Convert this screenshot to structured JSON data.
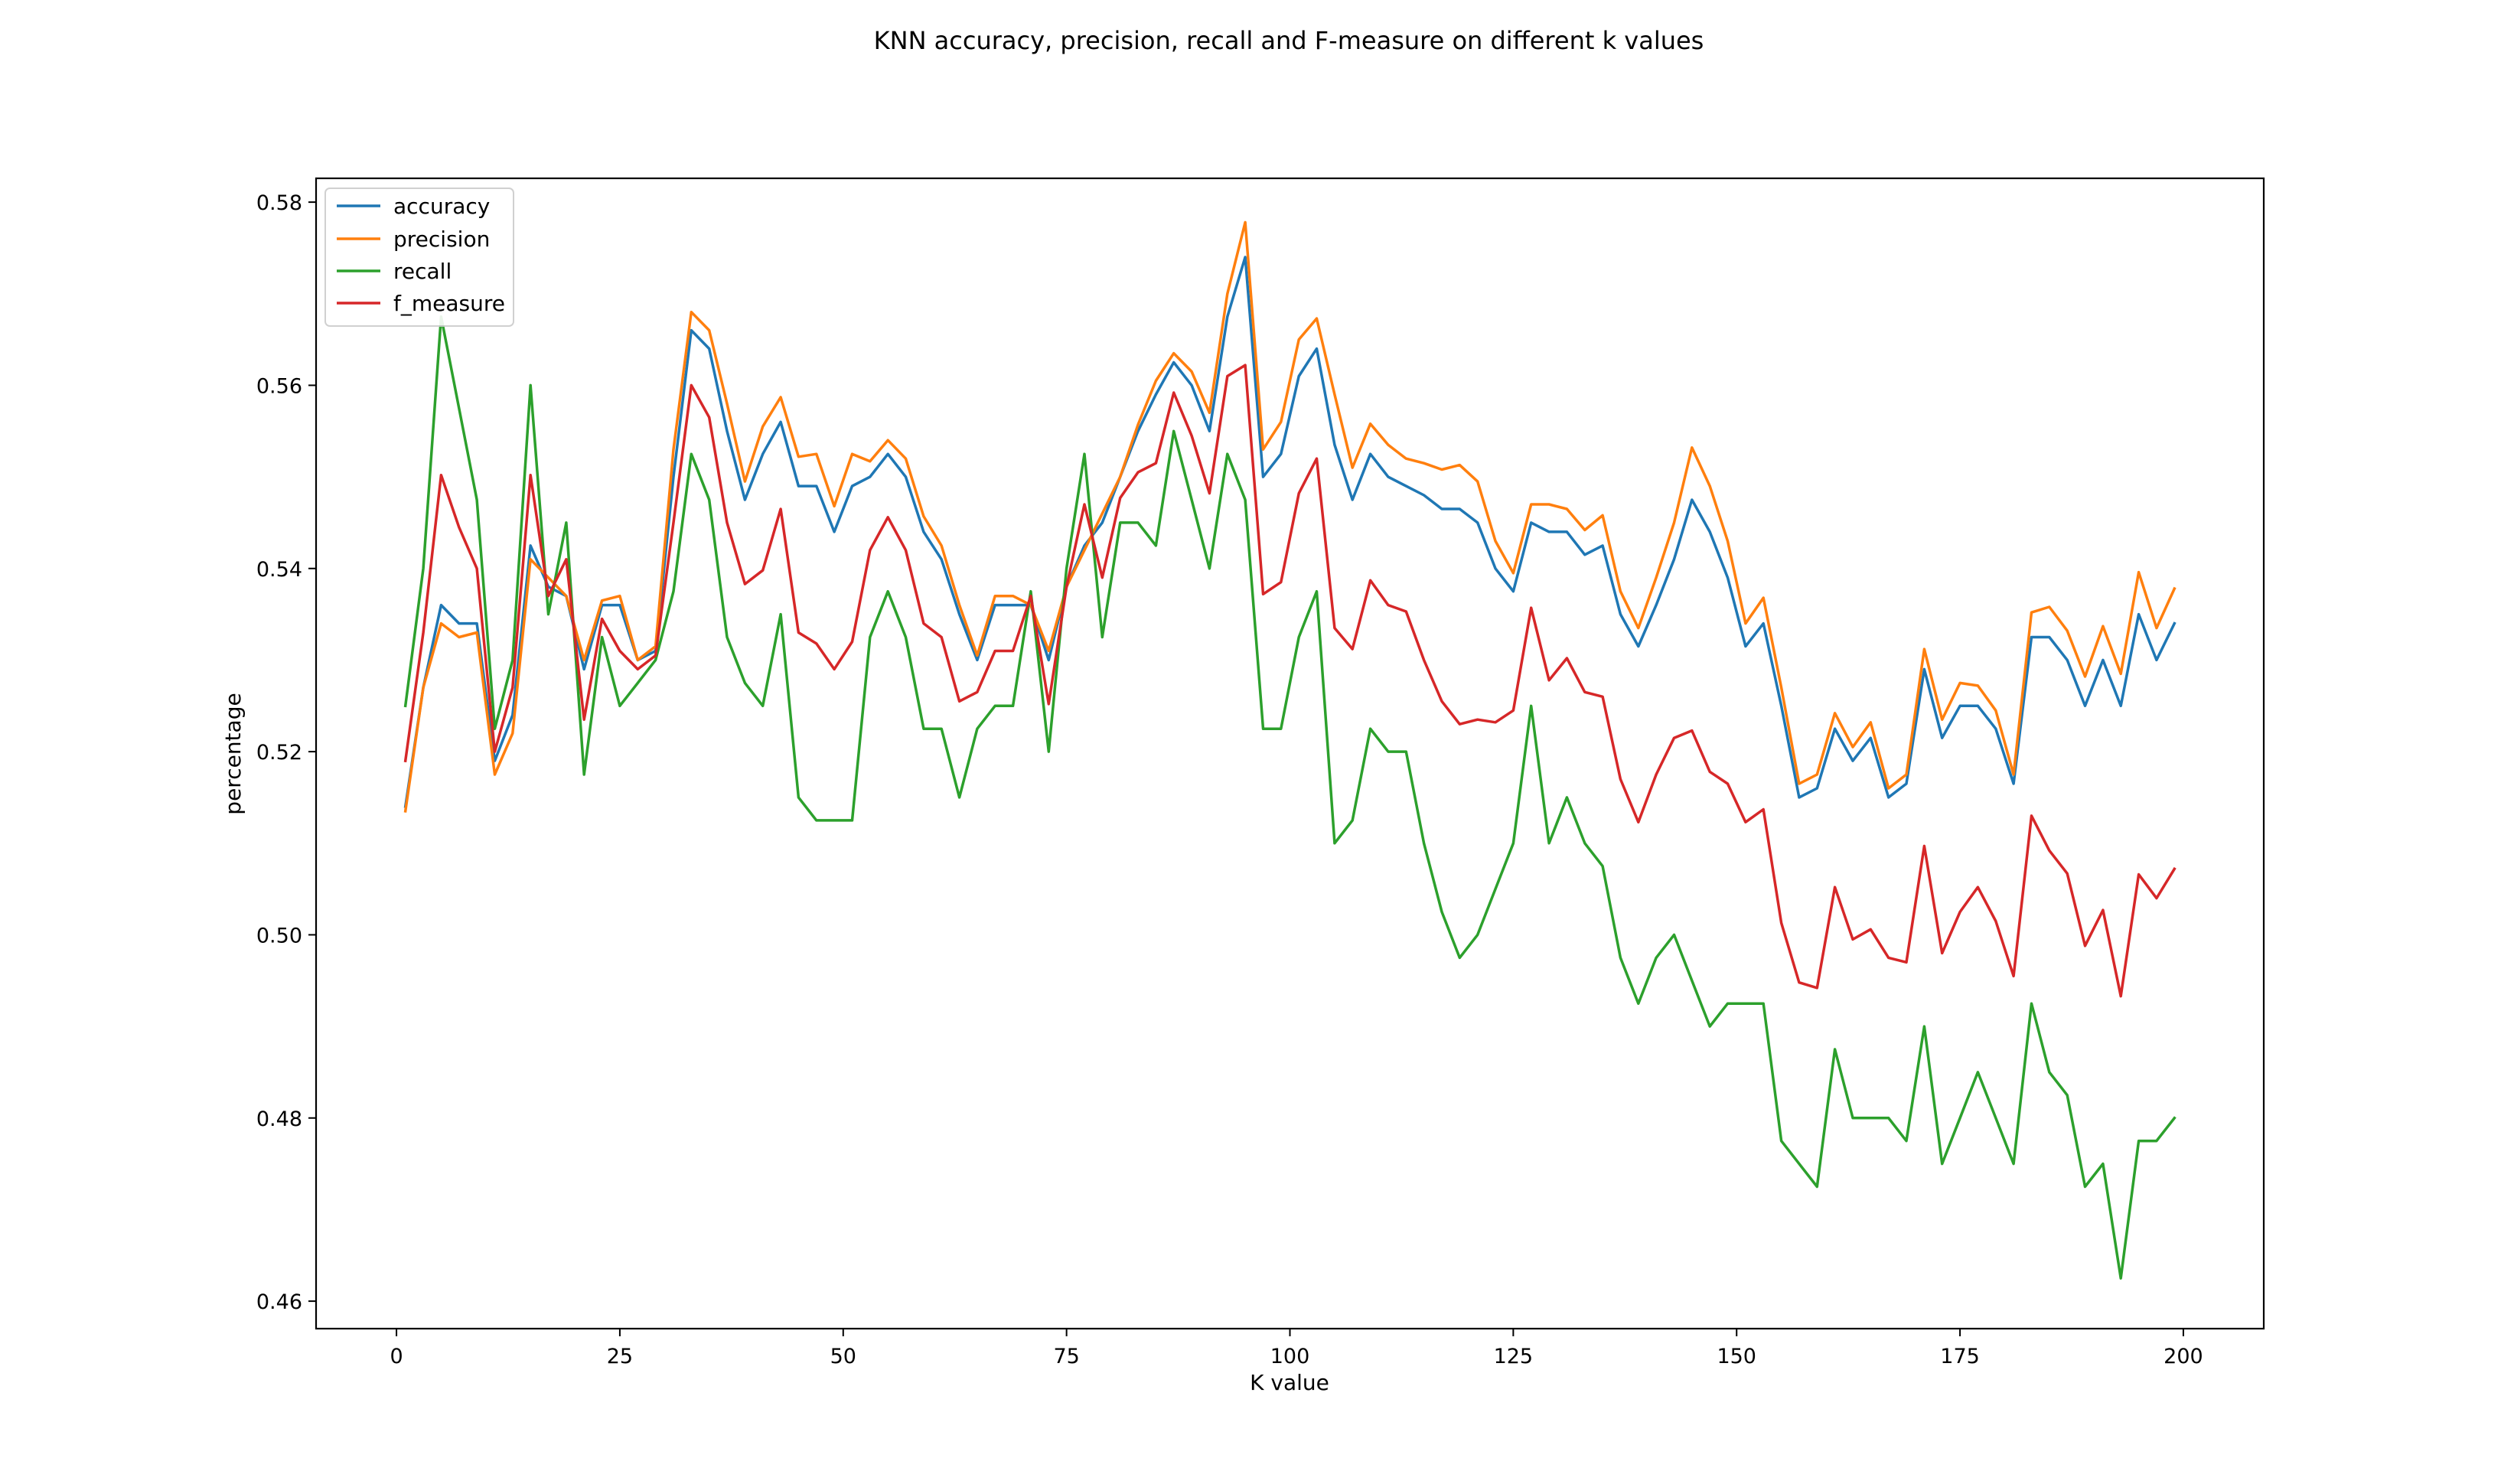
{
  "chart_data": {
    "type": "line",
    "title": "KNN accuracy, precision, recall and F-measure on different k values",
    "xlabel": "K value",
    "ylabel": "percentage",
    "xlim": [
      -9,
      209
    ],
    "ylim": [
      0.457,
      0.5826
    ],
    "xticks": [
      0,
      25,
      50,
      75,
      100,
      125,
      150,
      175,
      200
    ],
    "yticks": [
      0.46,
      0.48,
      0.5,
      0.52,
      0.54,
      0.56,
      0.58
    ],
    "ytick_labels": [
      "0.46",
      "0.48",
      "0.50",
      "0.52",
      "0.54",
      "0.56",
      "0.58"
    ],
    "grid": false,
    "legend_position": "top-left",
    "x": [
      1,
      3,
      5,
      7,
      9,
      11,
      13,
      15,
      17,
      19,
      21,
      23,
      25,
      27,
      29,
      31,
      33,
      35,
      37,
      39,
      41,
      43,
      45,
      47,
      49,
      51,
      53,
      55,
      57,
      59,
      61,
      63,
      65,
      67,
      69,
      71,
      73,
      75,
      77,
      79,
      81,
      83,
      85,
      87,
      89,
      91,
      93,
      95,
      97,
      99,
      101,
      103,
      105,
      107,
      109,
      111,
      113,
      115,
      117,
      119,
      121,
      123,
      125,
      127,
      129,
      131,
      133,
      135,
      137,
      139,
      141,
      143,
      145,
      147,
      149,
      151,
      153,
      155,
      157,
      159,
      161,
      163,
      165,
      167,
      169,
      171,
      173,
      175,
      177,
      179,
      181,
      183,
      185,
      187,
      189,
      191,
      193,
      195,
      197,
      199
    ],
    "series": [
      {
        "name": "accuracy",
        "color": "#1f77b4",
        "values": [
          0.514,
          0.527,
          0.536,
          0.534,
          0.534,
          0.519,
          0.524,
          0.5425,
          0.538,
          0.537,
          0.529,
          0.536,
          0.536,
          0.53,
          0.531,
          0.55,
          0.566,
          0.564,
          0.555,
          0.5475,
          0.5525,
          0.556,
          0.549,
          0.549,
          0.544,
          0.549,
          0.55,
          0.5525,
          0.55,
          0.544,
          0.541,
          0.535,
          0.53,
          0.536,
          0.536,
          0.536,
          0.53,
          0.538,
          0.5425,
          0.545,
          0.55,
          0.555,
          0.559,
          0.5625,
          0.56,
          0.555,
          0.5675,
          0.574,
          0.55,
          0.5525,
          0.561,
          0.564,
          0.5535,
          0.5475,
          0.5525,
          0.55,
          0.549,
          0.548,
          0.5465,
          0.5465,
          0.545,
          0.54,
          0.5375,
          0.545,
          0.544,
          0.544,
          0.5415,
          0.5425,
          0.535,
          0.5315,
          0.536,
          0.541,
          0.5475,
          0.544,
          0.539,
          0.5315,
          0.534,
          0.525,
          0.515,
          0.516,
          0.5225,
          0.519,
          0.5215,
          0.515,
          0.5165,
          0.529,
          0.5215,
          0.525,
          0.525,
          0.5225,
          0.5165,
          0.5325,
          0.5325,
          0.53,
          0.525,
          0.53,
          0.525,
          0.535,
          0.53,
          0.534
        ]
      },
      {
        "name": "precision",
        "color": "#ff7f0e",
        "values": [
          0.5135,
          0.527,
          0.534,
          0.5325,
          0.533,
          0.5175,
          0.522,
          0.541,
          0.539,
          0.537,
          0.53,
          0.5365,
          0.537,
          0.53,
          0.5315,
          0.553,
          0.568,
          0.566,
          0.558,
          0.5495,
          0.5555,
          0.5587,
          0.5522,
          0.5525,
          0.5468,
          0.5525,
          0.5517,
          0.554,
          0.552,
          0.5457,
          0.5425,
          0.536,
          0.5305,
          0.537,
          0.537,
          0.536,
          0.531,
          0.538,
          0.542,
          0.546,
          0.55,
          0.5557,
          0.5605,
          0.5635,
          0.5615,
          0.557,
          0.57,
          0.5778,
          0.553,
          0.556,
          0.565,
          0.5673,
          0.559,
          0.551,
          0.5558,
          0.5535,
          0.552,
          0.5515,
          0.5508,
          0.5513,
          0.5495,
          0.543,
          0.5395,
          0.547,
          0.547,
          0.5465,
          0.5442,
          0.5458,
          0.5375,
          0.5335,
          0.539,
          0.545,
          0.5532,
          0.549,
          0.543,
          0.534,
          0.5368,
          0.527,
          0.5165,
          0.5175,
          0.5242,
          0.5205,
          0.5232,
          0.516,
          0.5175,
          0.5312,
          0.5235,
          0.5275,
          0.5272,
          0.5245,
          0.5175,
          0.5352,
          0.5358,
          0.5332,
          0.5282,
          0.5337,
          0.5285,
          0.5396,
          0.5335,
          0.5378
        ]
      },
      {
        "name": "recall",
        "color": "#2ca02c",
        "values": [
          0.525,
          0.54,
          0.5675,
          0.5575,
          0.5475,
          0.5225,
          0.53,
          0.56,
          0.535,
          0.545,
          0.5175,
          0.5325,
          0.525,
          0.5275,
          0.53,
          0.5375,
          0.5525,
          0.5475,
          0.5325,
          0.5275,
          0.525,
          0.535,
          0.515,
          0.5125,
          0.5125,
          0.5125,
          0.5325,
          0.5375,
          0.5325,
          0.5225,
          0.5225,
          0.515,
          0.5225,
          0.525,
          0.525,
          0.5375,
          0.52,
          0.54,
          0.5525,
          0.5325,
          0.545,
          0.545,
          0.5425,
          0.555,
          0.5475,
          0.54,
          0.5525,
          0.5475,
          0.5225,
          0.5225,
          0.5325,
          0.5375,
          0.51,
          0.5125,
          0.5225,
          0.52,
          0.52,
          0.51,
          0.5025,
          0.4975,
          0.5,
          0.505,
          0.51,
          0.525,
          0.51,
          0.515,
          0.51,
          0.5075,
          0.4975,
          0.4925,
          0.4975,
          0.5,
          0.495,
          0.49,
          0.4925,
          0.4925,
          0.4925,
          0.4775,
          0.475,
          0.4725,
          0.4875,
          0.48,
          0.48,
          0.48,
          0.4775,
          0.49,
          0.475,
          0.48,
          0.485,
          0.48,
          0.475,
          0.4925,
          0.485,
          0.4825,
          0.4725,
          0.475,
          0.4625,
          0.4775,
          0.4775,
          0.48
        ]
      },
      {
        "name": "f_measure",
        "color": "#d62728",
        "values": [
          0.519,
          0.533,
          0.5502,
          0.5445,
          0.54,
          0.52,
          0.527,
          0.5502,
          0.537,
          0.541,
          0.5235,
          0.5345,
          0.531,
          0.529,
          0.5305,
          0.545,
          0.56,
          0.5565,
          0.545,
          0.5383,
          0.5398,
          0.5465,
          0.533,
          0.5318,
          0.529,
          0.532,
          0.542,
          0.5456,
          0.542,
          0.534,
          0.5325,
          0.5255,
          0.5265,
          0.531,
          0.531,
          0.537,
          0.5252,
          0.538,
          0.547,
          0.539,
          0.5477,
          0.5505,
          0.5515,
          0.5592,
          0.5545,
          0.5482,
          0.561,
          0.5622,
          0.5372,
          0.5385,
          0.5482,
          0.552,
          0.5335,
          0.5312,
          0.5387,
          0.536,
          0.5353,
          0.53,
          0.5255,
          0.523,
          0.5235,
          0.5232,
          0.5245,
          0.5357,
          0.5278,
          0.5302,
          0.5265,
          0.526,
          0.517,
          0.5123,
          0.5175,
          0.5215,
          0.5223,
          0.5178,
          0.5165,
          0.5123,
          0.5137,
          0.5013,
          0.4948,
          0.4942,
          0.5052,
          0.4995,
          0.5006,
          0.4975,
          0.497,
          0.5097,
          0.498,
          0.5025,
          0.5052,
          0.5015,
          0.4955,
          0.513,
          0.5092,
          0.5067,
          0.4988,
          0.5027,
          0.4933,
          0.5066,
          0.504,
          0.5072
        ]
      }
    ]
  }
}
